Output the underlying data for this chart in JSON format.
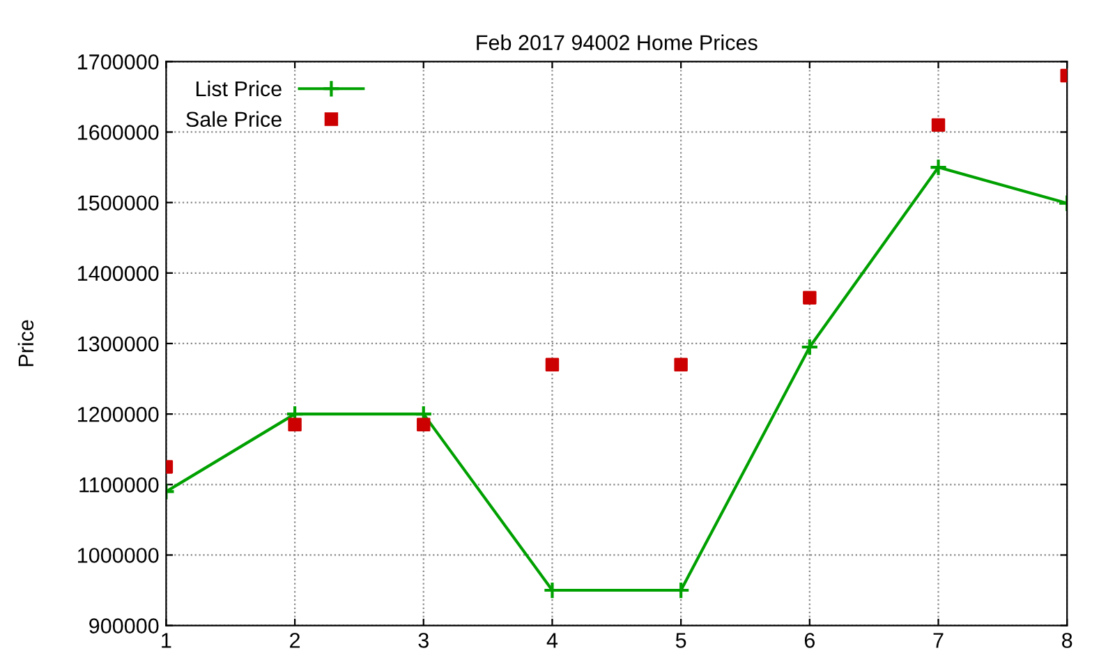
{
  "chart_data": {
    "type": "line",
    "title": "Feb 2017 94002 Home Prices",
    "ylabel": "Price",
    "x": [
      1,
      2,
      3,
      4,
      5,
      6,
      7,
      8
    ],
    "series": [
      {
        "name": "List Price",
        "color": "#00a000",
        "marker": "cross",
        "values": [
          1090000,
          1200000,
          1200000,
          950000,
          950000,
          1295000,
          1550000,
          1499000
        ]
      },
      {
        "name": "Sale Price",
        "color": "#cc0000",
        "type": "scatter",
        "marker": "square",
        "values": [
          1125000,
          1185000,
          1185000,
          1270000,
          1270000,
          1365000,
          1610000,
          1680000
        ]
      }
    ],
    "xlim": [
      1,
      8
    ],
    "xticks": [
      1,
      2,
      3,
      4,
      5,
      6,
      7,
      8
    ],
    "ylim": [
      900000,
      1700000
    ],
    "yticks": [
      900000,
      1000000,
      1100000,
      1200000,
      1300000,
      1400000,
      1500000,
      1600000,
      1700000
    ],
    "grid": true,
    "legend": "top left"
  }
}
